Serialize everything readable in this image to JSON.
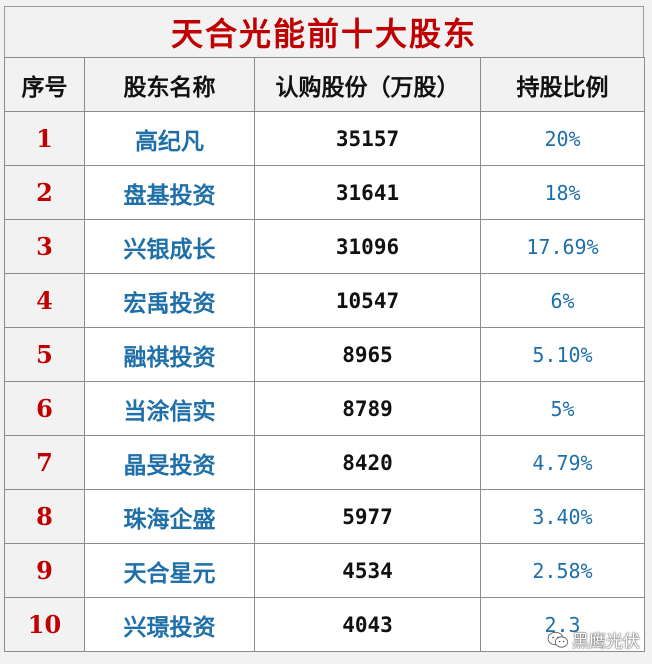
{
  "title": "天合光能前十大股东",
  "headers": [
    "序号",
    "股东名称",
    "认购股份（万股）",
    "持股比例"
  ],
  "rows": [
    {
      "idx": "1",
      "name": "高纪凡",
      "shares": "35157",
      "ratio": "20%"
    },
    {
      "idx": "2",
      "name": "盘基投资",
      "shares": "31641",
      "ratio": "18%"
    },
    {
      "idx": "3",
      "name": "兴银成长",
      "shares": "31096",
      "ratio": "17.69%"
    },
    {
      "idx": "4",
      "name": "宏禹投资",
      "shares": "10547",
      "ratio": "6%"
    },
    {
      "idx": "5",
      "name": "融祺投资",
      "shares": "8965",
      "ratio": "5.10%"
    },
    {
      "idx": "6",
      "name": "当涂信实",
      "shares": "8789",
      "ratio": "5%"
    },
    {
      "idx": "7",
      "name": "晶旻投资",
      "shares": "8420",
      "ratio": "4.79%"
    },
    {
      "idx": "8",
      "name": "珠海企盛",
      "shares": "5977",
      "ratio": "3.40%"
    },
    {
      "idx": "9",
      "name": "天合星元",
      "shares": "4534",
      "ratio": "2.58%"
    },
    {
      "idx": "10",
      "name": "兴璟投资",
      "shares": "4043",
      "ratio": "2.3"
    }
  ],
  "watermark": {
    "text": "黑鹰光伏",
    "icon": "wechat-icon"
  },
  "colors": {
    "title": "#c00000",
    "index": "#c00000",
    "name": "#1f6fa8",
    "ratio": "#1f6fa8",
    "header_bg": "#f2f2f2"
  }
}
